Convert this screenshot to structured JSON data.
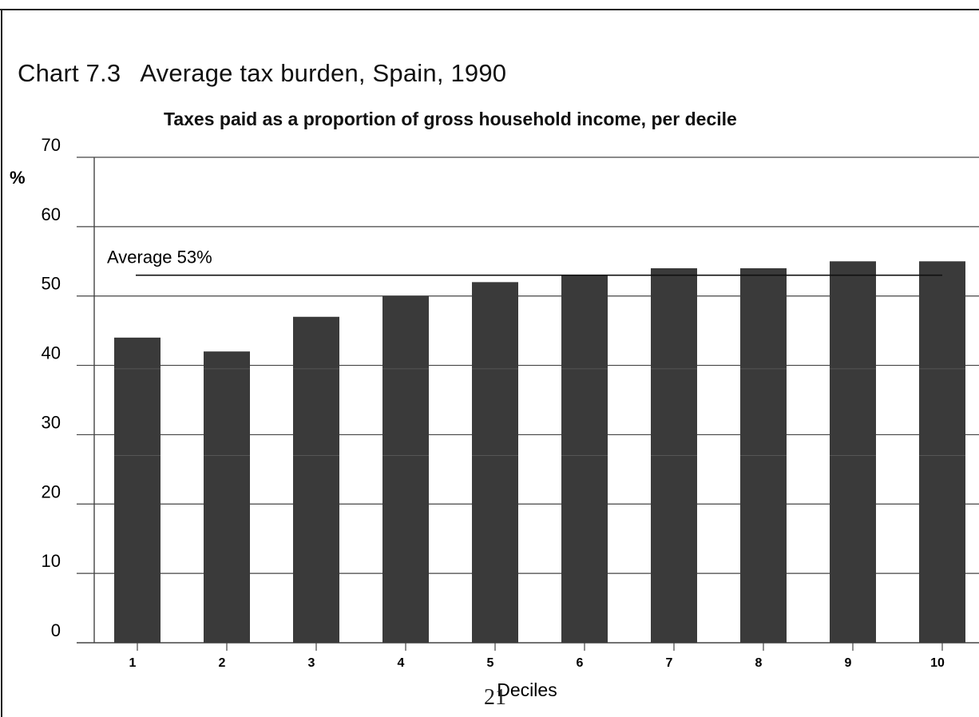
{
  "page": {
    "chart_number": "Chart 7.3",
    "chart_title": "Average tax burden, Spain, 1990",
    "subtitle": "Taxes paid as a proportion of gross household income, per decile",
    "page_number": "21"
  },
  "chart_data": {
    "type": "bar",
    "title": "Chart 7.3  Average tax burden, Spain, 1990",
    "subtitle": "Taxes paid as a proportion of gross household income, per decile",
    "xlabel": "Deciles",
    "ylabel": "%",
    "ylim": [
      0,
      70
    ],
    "yticks": [
      0,
      10,
      20,
      30,
      40,
      50,
      60,
      70
    ],
    "grid": true,
    "categories": [
      "1",
      "2",
      "3",
      "4",
      "5",
      "6",
      "7",
      "8",
      "9",
      "10"
    ],
    "values": [
      44,
      42,
      47,
      50,
      52,
      53,
      54,
      54,
      55,
      55
    ],
    "bar_color": "#3a3a3a",
    "average_line": {
      "value": 53,
      "label": "Average 53%"
    }
  }
}
